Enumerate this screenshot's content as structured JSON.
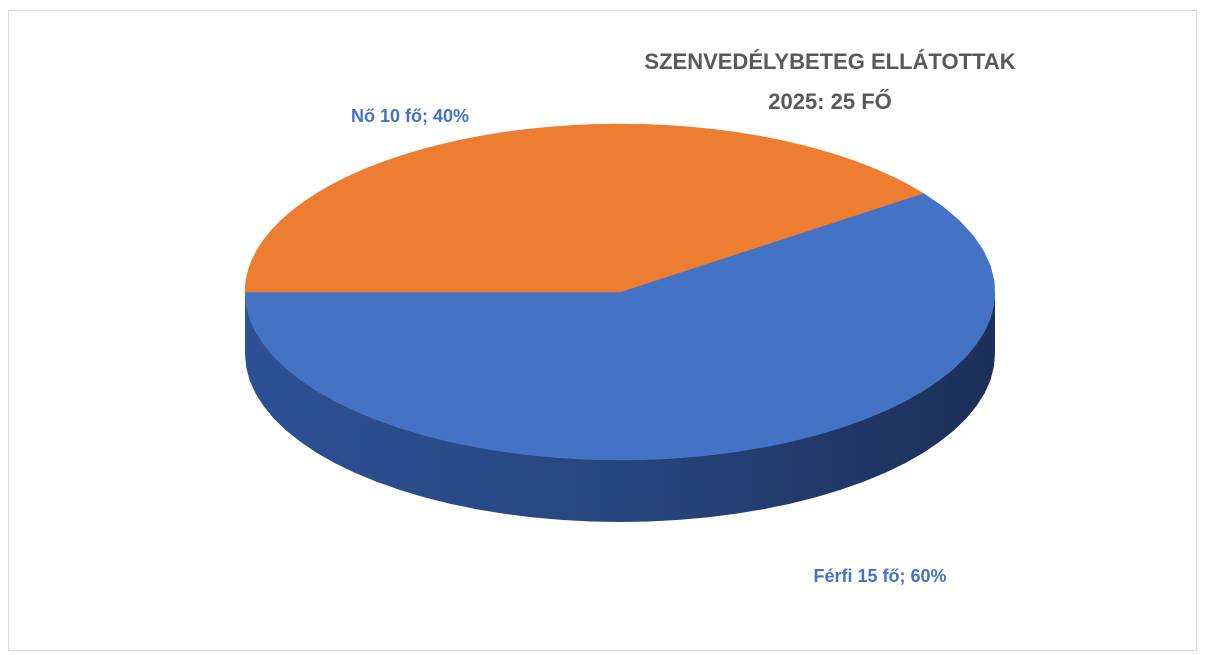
{
  "chart_data": {
    "type": "pie",
    "title": [
      "SZENVEDÉLYBETEG ELLÁTOTTAK",
      "2025: 25 FŐ"
    ],
    "categories": [
      "Férfi",
      "Nő"
    ],
    "values": [
      15,
      10
    ],
    "value_labels": [
      "Férfi 15 fő; 60%",
      "Nő 10 fő; 40%"
    ],
    "colors": [
      "#4472c4",
      "#ed7d31"
    ]
  }
}
